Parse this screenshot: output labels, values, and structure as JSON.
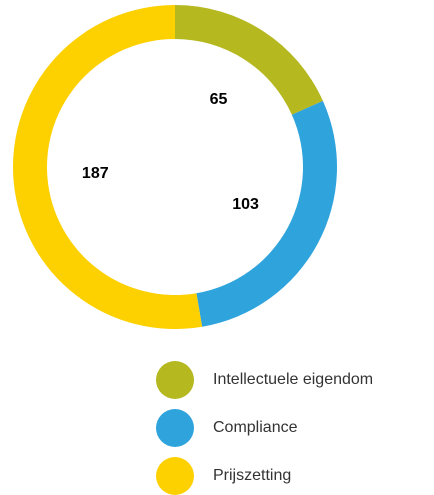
{
  "chart_data": {
    "type": "donut",
    "categories": [
      "Intellectuele eigendom",
      "Compliance",
      "Prijszetting"
    ],
    "values": [
      65,
      103,
      187
    ],
    "colors": [
      "#b5b81f",
      "#2ea3dc",
      "#fdd000"
    ]
  }
}
